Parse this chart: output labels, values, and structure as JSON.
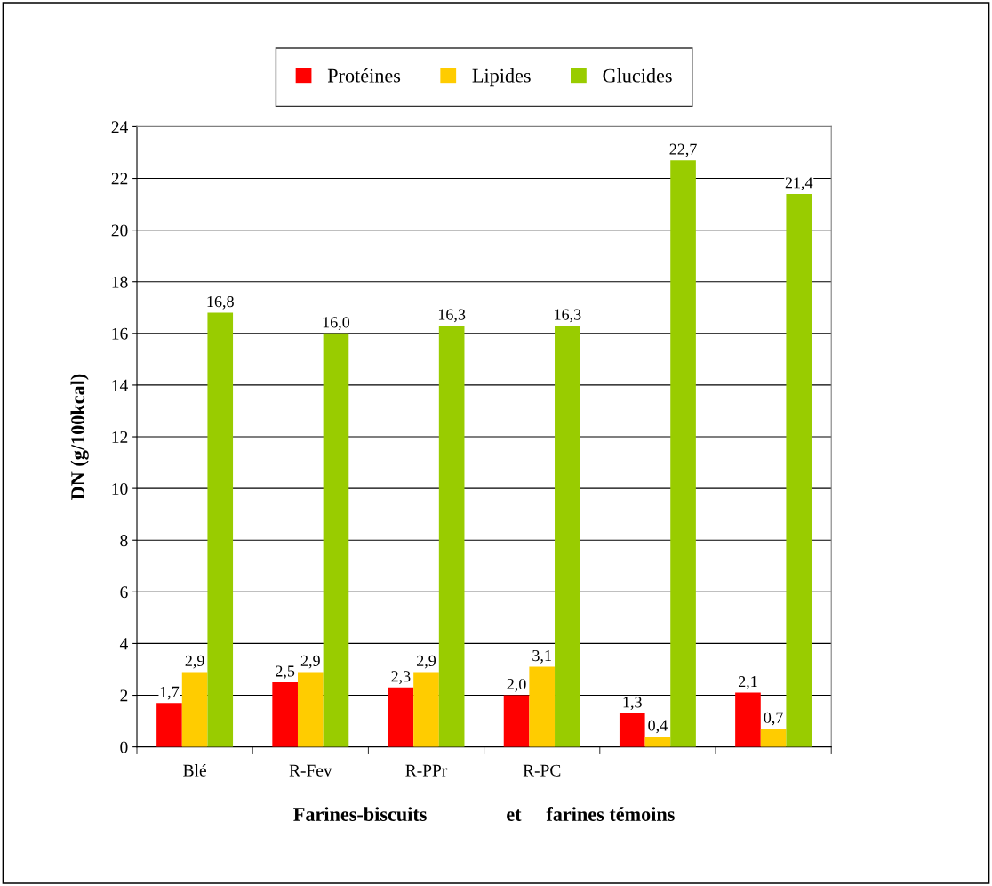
{
  "chart_data": {
    "type": "bar",
    "xlabel": "Farines-biscuits                et     farines témoins",
    "ylabel": "DN (g/100kcal)",
    "categories": [
      "Blé",
      "R-Fev",
      "R-PPr",
      "R-PC",
      null,
      null
    ],
    "series": [
      {
        "name": "Protéines",
        "color": "#ff0000",
        "values": [
          1.7,
          2.5,
          2.3,
          2.0,
          1.3,
          2.1
        ],
        "value_labels": [
          "1,7",
          "2,5",
          "2,3",
          "2,0",
          "1,3",
          "2,1"
        ]
      },
      {
        "name": "Lipides",
        "color": "#ffcc00",
        "values": [
          2.9,
          2.9,
          2.9,
          3.1,
          0.4,
          0.7
        ],
        "value_labels": [
          "2,9",
          "2,9",
          "2,9",
          "3,1",
          "0,4",
          "0,7"
        ]
      },
      {
        "name": "Glucides",
        "color": "#99cc00",
        "values": [
          16.8,
          16.0,
          16.3,
          16.3,
          22.7,
          21.4
        ],
        "value_labels": [
          "16,8",
          "16,0",
          "16,3",
          "16,3",
          "22,7",
          "21,4"
        ]
      }
    ],
    "ylim": [
      0,
      24
    ],
    "yticks": [
      0,
      2,
      4,
      6,
      8,
      10,
      12,
      14,
      16,
      18,
      20,
      22,
      24
    ],
    "grid": "y",
    "legend": "top"
  }
}
